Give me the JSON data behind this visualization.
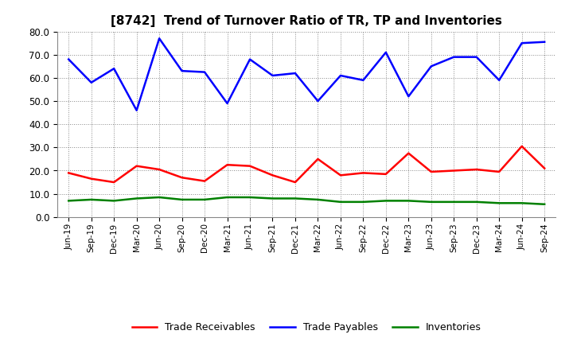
{
  "title": "[8742]  Trend of Turnover Ratio of TR, TP and Inventories",
  "x_labels": [
    "Jun-19",
    "Sep-19",
    "Dec-19",
    "Mar-20",
    "Jun-20",
    "Sep-20",
    "Dec-20",
    "Mar-21",
    "Jun-21",
    "Sep-21",
    "Dec-21",
    "Mar-22",
    "Jun-22",
    "Sep-22",
    "Dec-22",
    "Mar-23",
    "Jun-23",
    "Sep-23",
    "Dec-23",
    "Mar-24",
    "Jun-24",
    "Sep-24"
  ],
  "trade_receivables": [
    19.0,
    16.5,
    15.0,
    22.0,
    20.5,
    17.0,
    15.5,
    22.5,
    22.0,
    18.0,
    15.0,
    25.0,
    18.0,
    19.0,
    18.5,
    27.5,
    19.5,
    20.0,
    20.5,
    19.5,
    30.5,
    21.0
  ],
  "trade_payables": [
    68.0,
    58.0,
    64.0,
    46.0,
    77.0,
    63.0,
    62.5,
    49.0,
    68.0,
    61.0,
    62.0,
    50.0,
    61.0,
    59.0,
    71.0,
    52.0,
    65.0,
    69.0,
    69.0,
    59.0,
    75.0,
    75.5
  ],
  "inventories": [
    7.0,
    7.5,
    7.0,
    8.0,
    8.5,
    7.5,
    7.5,
    8.5,
    8.5,
    8.0,
    8.0,
    7.5,
    6.5,
    6.5,
    7.0,
    7.0,
    6.5,
    6.5,
    6.5,
    6.0,
    6.0,
    5.5
  ],
  "ylim": [
    0.0,
    80.0
  ],
  "yticks": [
    0.0,
    10.0,
    20.0,
    30.0,
    40.0,
    50.0,
    60.0,
    70.0,
    80.0
  ],
  "color_tr": "#ff0000",
  "color_tp": "#0000ff",
  "color_inv": "#008000",
  "background_color": "#ffffff",
  "plot_bg_color": "#ffffff",
  "grid_color": "#aaaaaa",
  "legend_labels": [
    "Trade Receivables",
    "Trade Payables",
    "Inventories"
  ]
}
